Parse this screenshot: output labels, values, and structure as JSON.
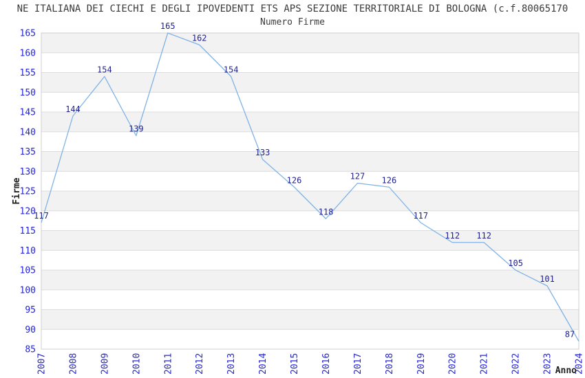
{
  "header": {
    "title": "NE ITALIANA DEI CIECHI E DEGLI IPOVEDENTI ETS APS SEZIONE TERRITORIALE DI BOLOGNA (c.f.80065170"
  },
  "chart_data": {
    "type": "line",
    "title": "Numero Firme",
    "xlabel": "Anno",
    "ylabel": "Firme",
    "x": [
      "2007",
      "2008",
      "2009",
      "2010",
      "2011",
      "2012",
      "2013",
      "2014",
      "2015",
      "2016",
      "2017",
      "2018",
      "2019",
      "2020",
      "2021",
      "2022",
      "2023",
      "2024"
    ],
    "values": [
      117,
      144,
      154,
      139,
      165,
      162,
      154,
      133,
      126,
      118,
      127,
      126,
      117,
      112,
      112,
      105,
      101,
      87
    ],
    "ylim": [
      85,
      165
    ],
    "ytick_step": 5,
    "grid": "horizontal-bands",
    "legend": "none",
    "colors": {
      "line": "#7fb2e6",
      "tick_label": "#2323d7",
      "data_label": "#1f1f8c",
      "band": "#f2f2f2",
      "gridline": "#dcdcdc",
      "border": "#cfcfcf",
      "title": "#3a3a3a",
      "axis_title": "#1f1f1f",
      "background": "#ffffff"
    }
  }
}
